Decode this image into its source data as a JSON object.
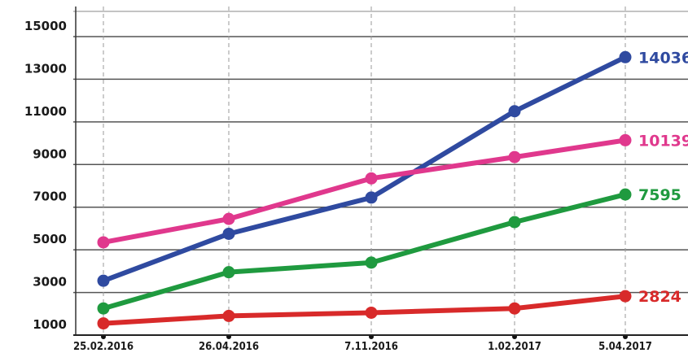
{
  "chart_data": {
    "type": "line",
    "title": "",
    "xlabel": "",
    "ylabel": "",
    "categories": [
      "25.02.2016",
      "26.04.2016",
      "7.11.2016",
      "1.02.2017",
      "5.04.2017"
    ],
    "ylim": [
      0,
      15000
    ],
    "yticks": [
      1000,
      3000,
      5000,
      7000,
      9000,
      11000,
      13000,
      15000
    ],
    "grid": {
      "horizontal": true,
      "vertical_dashed": true
    },
    "legend": "none",
    "series": [
      {
        "key": "blue",
        "color": "#2f4aa0",
        "values": [
          3550,
          5750,
          7450,
          11500,
          14036
        ],
        "end_label": "14036"
      },
      {
        "key": "pink",
        "color": "#e0388d",
        "values": [
          5350,
          6450,
          8350,
          9350,
          10139
        ],
        "end_label": "10139"
      },
      {
        "key": "green",
        "color": "#1f9a3f",
        "values": [
          2250,
          3950,
          4400,
          6300,
          7595
        ],
        "end_label": "7595"
      },
      {
        "key": "red",
        "color": "#d82a2a",
        "values": [
          1550,
          1900,
          2050,
          2250,
          2824
        ],
        "end_label": "2824"
      }
    ]
  }
}
